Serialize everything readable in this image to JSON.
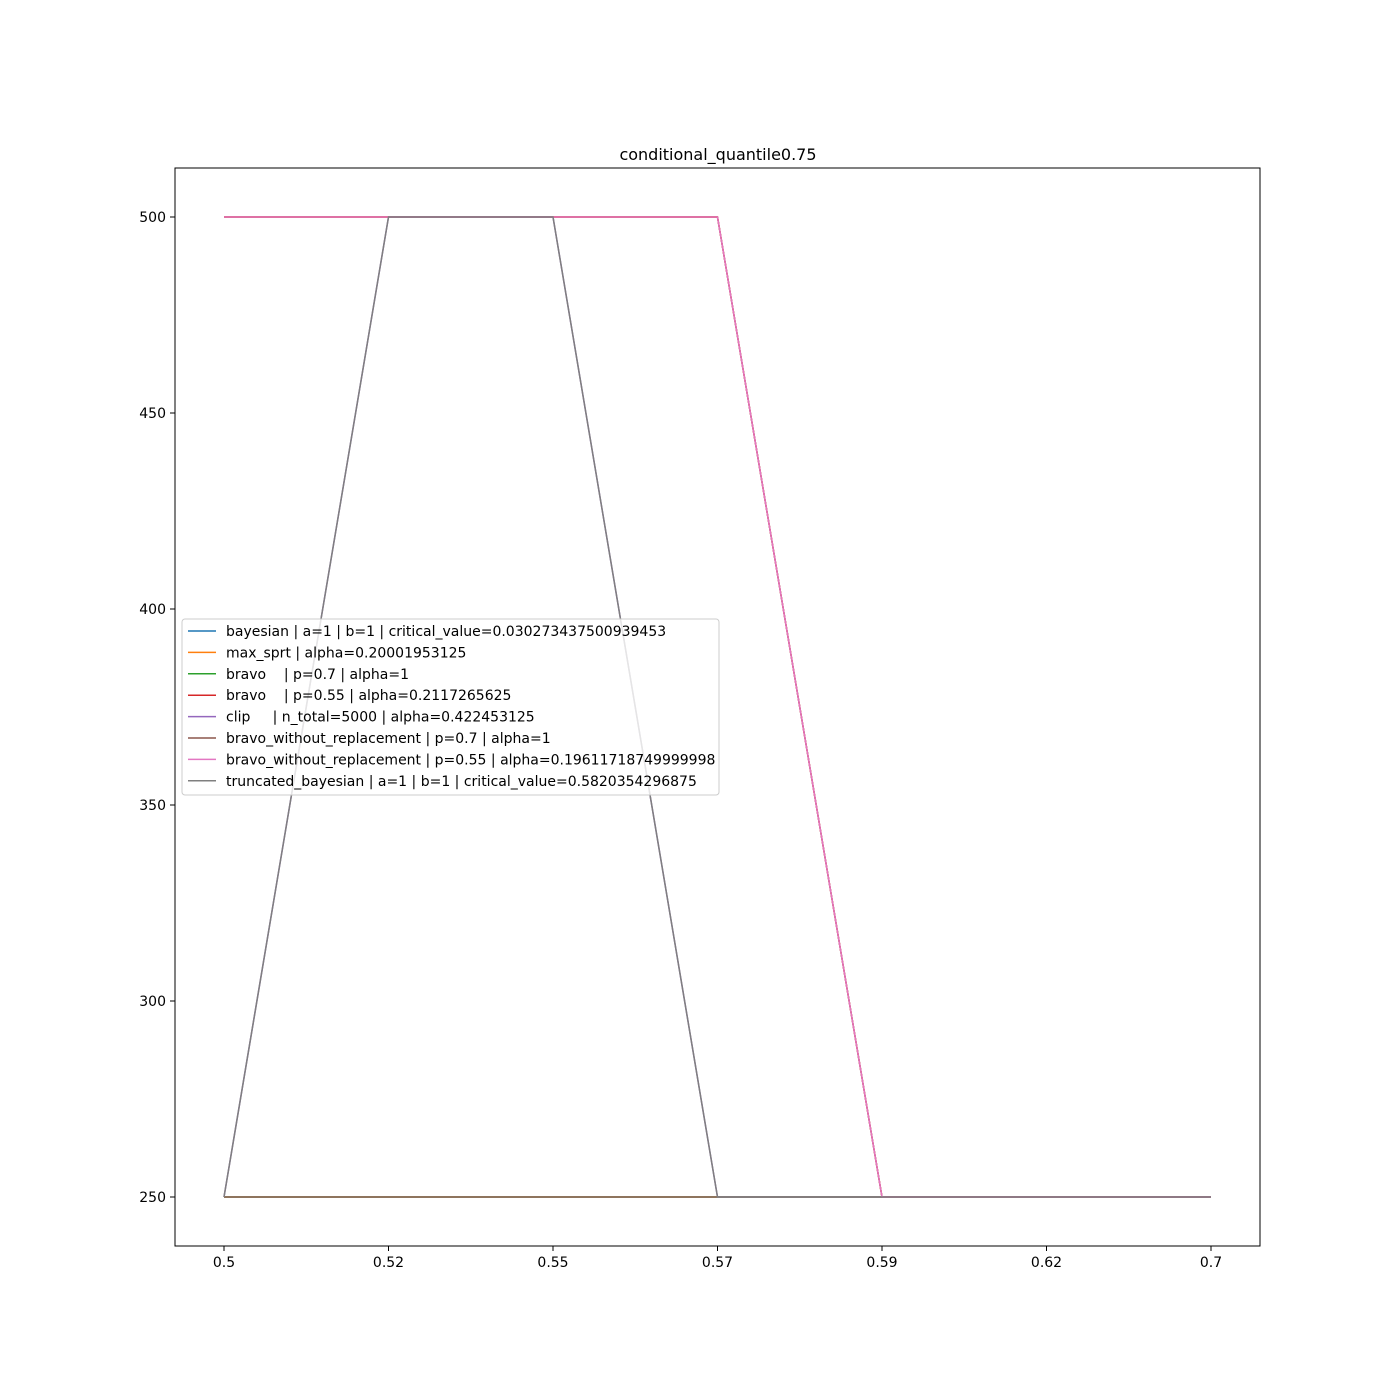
{
  "chart_data": {
    "type": "line",
    "title": "conditional_quantile0.75",
    "xlabel": "",
    "ylabel": "",
    "x": [
      0.5,
      0.52,
      0.55,
      0.57,
      0.59,
      0.62,
      0.7
    ],
    "x_tick_labels": [
      "0.5",
      "0.52",
      "0.55",
      "0.57",
      "0.59",
      "0.62",
      "0.7"
    ],
    "y_ticks": [
      250,
      300,
      350,
      400,
      450,
      500
    ],
    "y_tick_labels": [
      "250",
      "300",
      "350",
      "400",
      "450",
      "500"
    ],
    "ylim": [
      237.5,
      512.5
    ],
    "grid": false,
    "legend_position": "center-left",
    "series": [
      {
        "name": "bayesian | a=1 | b=1 | critical_value=0.030273437500939453",
        "color": "#1f77b4",
        "values": [
          500,
          500,
          500,
          500,
          250,
          250,
          250
        ]
      },
      {
        "name": "max_sprt | alpha=0.20001953125",
        "color": "#ff7f0e",
        "values": [
          500,
          500,
          500,
          500,
          250,
          250,
          250
        ]
      },
      {
        "name": "bravo    | p=0.7 | alpha=1",
        "color": "#2ca02c",
        "values": [
          250,
          250,
          250,
          250,
          250,
          250,
          250
        ]
      },
      {
        "name": "bravo    | p=0.55 | alpha=0.2117265625",
        "color": "#d62728",
        "values": [
          500,
          500,
          500,
          500,
          250,
          250,
          250
        ]
      },
      {
        "name": "clip     | n_total=5000 | alpha=0.422453125",
        "color": "#9467bd",
        "values": [
          250,
          500,
          500,
          250,
          250,
          250,
          250
        ]
      },
      {
        "name": "bravo_without_replacement | p=0.7 | alpha=1",
        "color": "#8c564b",
        "values": [
          250,
          250,
          250,
          250,
          250,
          250,
          250
        ]
      },
      {
        "name": "bravo_without_replacement | p=0.55 | alpha=0.19611718749999998",
        "color": "#e377c2",
        "values": [
          500,
          500,
          500,
          500,
          250,
          250,
          250
        ]
      },
      {
        "name": "truncated_bayesian | a=1 | b=1 | critical_value=0.5820354296875",
        "color": "#7f7f7f",
        "values": [
          250,
          500,
          500,
          250,
          250,
          250,
          250
        ]
      }
    ]
  }
}
